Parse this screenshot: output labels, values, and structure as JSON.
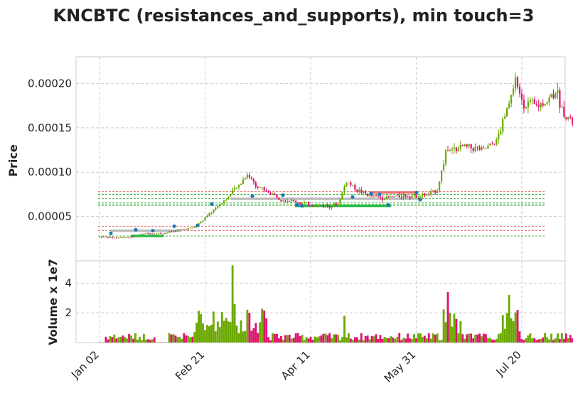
{
  "chart_data": {
    "type": "candlestick",
    "title": "KNCBTC (resistances_and_supports), min touch=3",
    "x_ticks": [
      "Jan 02",
      "Feb 21",
      "Apr 11",
      "May 31",
      "Jul 20"
    ],
    "price_panel": {
      "ylabel": "Price",
      "ylim": [
        0.0,
        0.00023
      ],
      "y_ticks": [
        "0.00005",
        "0.00010",
        "0.00015",
        "0.00020"
      ],
      "y_tick_values": [
        5e-05,
        0.0001,
        0.00015,
        0.0002
      ],
      "ohlc_approx": "daily candles Jan 02 – Jul 27",
      "resistance_lines": [
        7.8e-05,
        3.9e-05,
        3.4e-05
      ],
      "support_lines": [
        7.5e-05,
        7e-05,
        6.6e-05,
        6.4e-05,
        6.2e-05,
        2.8e-05
      ],
      "resistance_color": "#e06060",
      "support_color": "#22aa22"
    },
    "volume_panel": {
      "ylabel": "Volume x 1e7",
      "ylim": [
        0,
        5.5
      ],
      "y_ticks": [
        "2",
        "4"
      ],
      "y_tick_values": [
        2,
        4
      ]
    },
    "colors": {
      "up": "#6aa800",
      "down": "#e0106e",
      "grid": "#cccccc",
      "marker": "#1f77b4"
    },
    "grid": true
  }
}
